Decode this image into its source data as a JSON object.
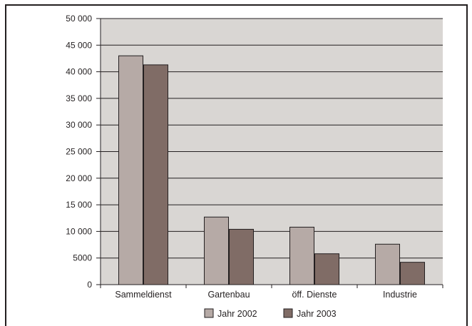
{
  "chart_data": {
    "type": "bar",
    "title": "",
    "xlabel": "",
    "ylabel": "",
    "categories": [
      "Sammeldienst",
      "Gartenbau",
      "öff. Dienste",
      "Industrie"
    ],
    "series": [
      {
        "name": "Jahr 2002",
        "color": "#b6aaa6",
        "values": [
          43000,
          12700,
          10800,
          7600
        ]
      },
      {
        "name": "Jahr 2003",
        "color": "#806c66",
        "values": [
          41300,
          10400,
          5800,
          4200
        ]
      }
    ],
    "ylim": [
      0,
      50000
    ],
    "yticks": [
      0,
      5000,
      10000,
      15000,
      20000,
      25000,
      30000,
      35000,
      40000,
      45000,
      50000
    ],
    "ytick_labels": [
      "0",
      "5000",
      "10 000",
      "15 000",
      "20 000",
      "25 000",
      "30 000",
      "35 000",
      "40 000",
      "45 000",
      "50 000"
    ],
    "grid": true,
    "plot_background": "#d9d6d3",
    "legend_position": "bottom"
  }
}
